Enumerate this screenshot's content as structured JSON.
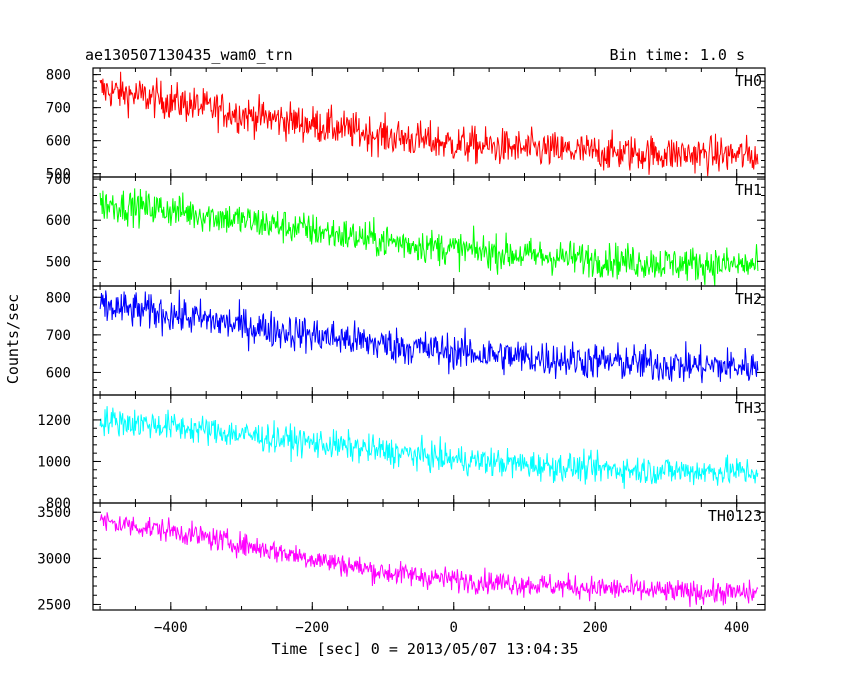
{
  "header": {
    "title": "ae130507130435_wam0_trn",
    "bin_time": "Bin time: 1.0 s"
  },
  "axes": {
    "ylabel": "Counts/sec",
    "xlabel": "Time [sec] 0 = 2013/05/07 13:04:35"
  },
  "chart_data": {
    "type": "line",
    "x_range": [
      -510,
      440
    ],
    "x_ticks": [
      -400,
      -200,
      0,
      200,
      400
    ],
    "x_tick_labels": [
      "−400",
      "−200",
      "0",
      "200",
      "400"
    ],
    "sampling": "1.0 s bins, approx. x = -500 to 430",
    "grid": false,
    "panels": [
      {
        "name": "TH0",
        "color": "#ff0000",
        "ylim": [
          490,
          820
        ],
        "yticks": [
          500,
          600,
          700,
          800
        ],
        "trend_x": [
          -500,
          -400,
          -300,
          -200,
          -100,
          0,
          100,
          200,
          300,
          430
        ],
        "trend_y": [
          755,
          720,
          680,
          650,
          615,
          590,
          575,
          565,
          560,
          555
        ],
        "noise": 40
      },
      {
        "name": "TH1",
        "color": "#00ff00",
        "ylim": [
          440,
          705
        ],
        "yticks": [
          500,
          600,
          700
        ],
        "trend_x": [
          -500,
          -400,
          -300,
          -200,
          -100,
          0,
          100,
          200,
          300,
          430
        ],
        "trend_y": [
          640,
          625,
          600,
          575,
          550,
          530,
          515,
          505,
          495,
          490
        ],
        "noise": 30
      },
      {
        "name": "TH2",
        "color": "#0000ff",
        "ylim": [
          540,
          830
        ],
        "yticks": [
          600,
          700,
          800
        ],
        "trend_x": [
          -500,
          -400,
          -300,
          -200,
          -100,
          0,
          100,
          200,
          300,
          430
        ],
        "trend_y": [
          775,
          755,
          725,
          700,
          675,
          655,
          640,
          630,
          620,
          615
        ],
        "noise": 35
      },
      {
        "name": "TH3",
        "color": "#00ffff",
        "ylim": [
          800,
          1320
        ],
        "yticks": [
          800,
          1000,
          1200
        ],
        "trend_x": [
          -500,
          -400,
          -300,
          -200,
          -100,
          0,
          100,
          200,
          300,
          430
        ],
        "trend_y": [
          1200,
          1170,
          1130,
          1090,
          1050,
          1010,
          985,
          965,
          955,
          950
        ],
        "noise": 50
      },
      {
        "name": "TH0123",
        "color": "#ff00ff",
        "ylim": [
          2440,
          3600
        ],
        "yticks": [
          2500,
          3000,
          3500
        ],
        "trend_x": [
          -500,
          -400,
          -300,
          -200,
          -100,
          0,
          100,
          200,
          300,
          430
        ],
        "trend_y": [
          3400,
          3300,
          3150,
          3000,
          2850,
          2770,
          2720,
          2680,
          2640,
          2620
        ],
        "noise": 90
      }
    ]
  }
}
